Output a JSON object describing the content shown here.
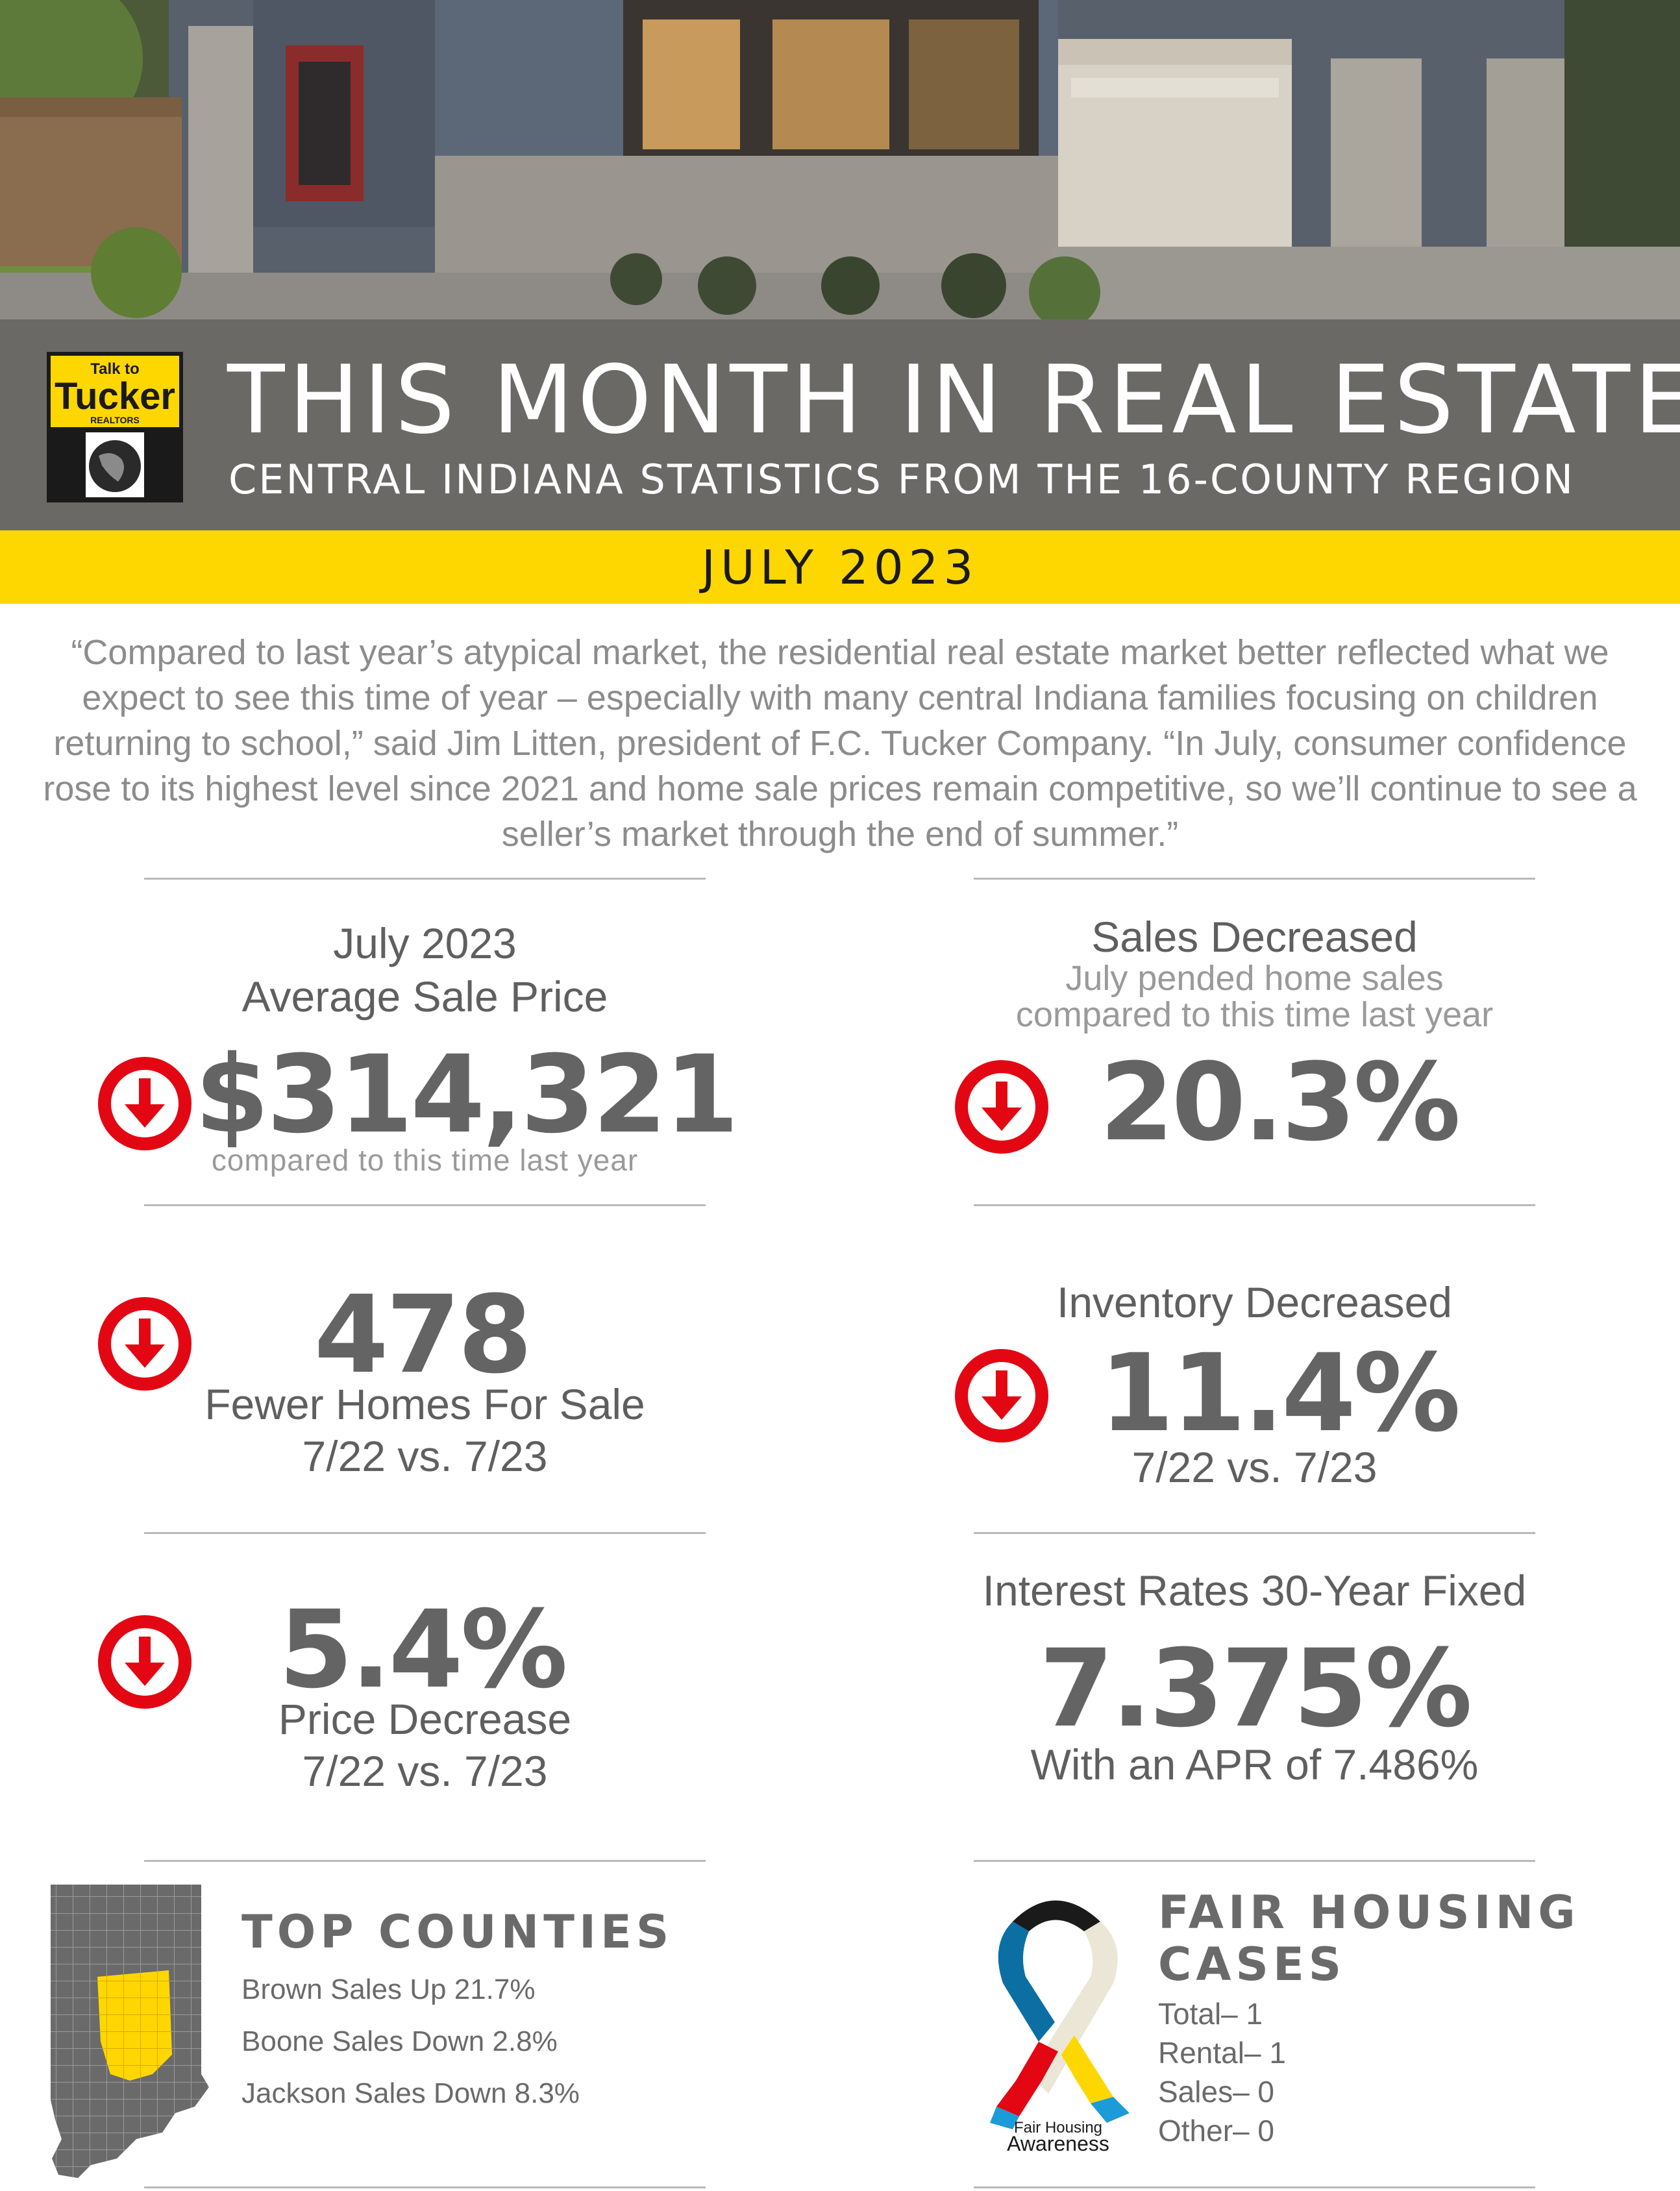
{
  "header": {
    "logo_text": [
      "Talk to",
      "Tucker",
      "REALTORS"
    ],
    "title": "THIS MONTH IN REAL ESTATE",
    "subtitle": "CENTRAL INDIANA STATISTICS FROM THE 16-COUNTY REGION",
    "date": "JULY 2023"
  },
  "quote": "“Compared to last year’s atypical market, the residential real estate market better reflected what we expect to see this time of year – especially with many central Indiana families focusing on children returning to school,” said Jim Litten, president of F.C. Tucker Company. “In July, consumer confidence rose to its highest level since 2021 and home sale prices remain competitive, so we’ll continue to see a seller’s market through the end of summer.”",
  "stats": {
    "avg_price": {
      "label_line1": "July 2023",
      "label_line2": "Average Sale Price",
      "value": "$314,321",
      "caption": "compared to this time last year",
      "trend": "down"
    },
    "sales": {
      "label": "Sales Decreased",
      "sub_line1": "July pended home sales",
      "sub_line2": "compared to this time last year",
      "value": "20.3%",
      "trend": "down"
    },
    "fewer_homes": {
      "value": "478",
      "label": "Fewer Homes For Sale",
      "period": "7/22 vs. 7/23",
      "trend": "down"
    },
    "inventory": {
      "label": "Inventory Decreased",
      "value": "11.4%",
      "period": "7/22 vs. 7/23",
      "trend": "down"
    },
    "price_decrease": {
      "value": "5.4%",
      "label": "Price Decrease",
      "period": "7/22 vs. 7/23",
      "trend": "down"
    },
    "interest": {
      "label": "Interest Rates 30-Year Fixed",
      "value": "7.375%",
      "apr": "With an APR of 7.486%"
    }
  },
  "top_counties": {
    "heading": "TOP COUNTIES",
    "items": [
      "Brown Sales Up 21.7%",
      "Boone Sales Down 2.8%",
      "Jackson Sales Down 8.3%"
    ]
  },
  "fair_housing": {
    "heading_line1": "FAIR HOUSING",
    "heading_line2": "CASES",
    "items": [
      "Total– 1",
      "Rental– 1",
      "Sales– 0",
      "Other– 0"
    ],
    "ribbon_line1": "Fair Housing",
    "ribbon_line2": "Awareness"
  },
  "colors": {
    "band": "#6b6966",
    "accent_yellow": "#ffd700",
    "arrow_red": "#e30613",
    "text_gray": "#646464"
  }
}
